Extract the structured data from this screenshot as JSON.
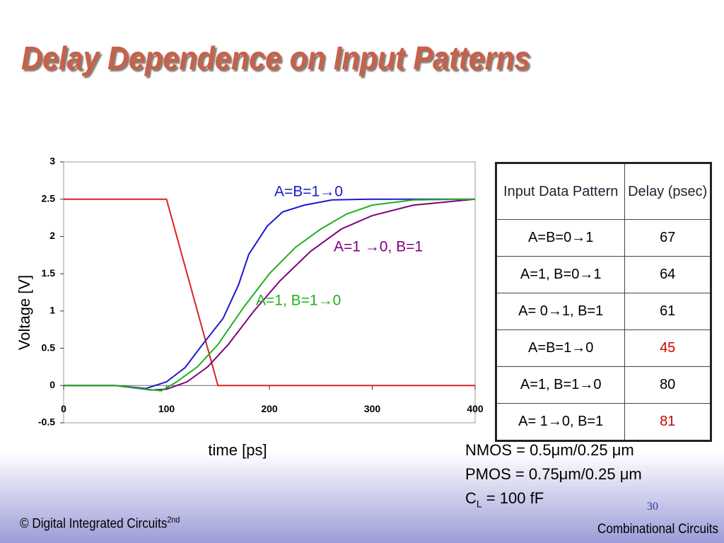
{
  "title": "Delay Dependence on Input Patterns",
  "chart_data": {
    "type": "line",
    "xlabel": "time [ps]",
    "ylabel": "Voltage [V]",
    "xlim": [
      0,
      400
    ],
    "ylim": [
      -0.5,
      3
    ],
    "xticks": [
      0,
      100,
      200,
      300,
      400
    ],
    "yticks": [
      -0.5,
      0,
      0.5,
      1,
      1.5,
      2,
      2.5,
      3
    ],
    "grid": false,
    "series": [
      {
        "color": "#e02020",
        "x": [
          0,
          100,
          150,
          400
        ],
        "values": [
          2.5,
          2.5,
          0,
          0
        ]
      },
      {
        "name": "A=B=1→0",
        "color": "#1a1acc",
        "x": [
          0,
          50,
          80,
          100,
          118,
          135,
          155,
          170,
          180,
          198,
          213,
          234,
          261,
          300,
          400
        ],
        "values": [
          0,
          0,
          -0.04,
          0.05,
          0.24,
          0.55,
          0.9,
          1.35,
          1.76,
          2.14,
          2.33,
          2.42,
          2.49,
          2.5,
          2.5
        ]
      },
      {
        "name": "A=1 →0, B=1",
        "color": "#800080",
        "x": [
          0,
          50,
          85,
          100,
          120,
          140,
          160,
          185,
          210,
          240,
          270,
          300,
          340,
          400
        ],
        "values": [
          0,
          0,
          -0.06,
          -0.05,
          0.05,
          0.25,
          0.55,
          1.0,
          1.4,
          1.8,
          2.1,
          2.28,
          2.42,
          2.5
        ]
      },
      {
        "name": "A=1, B=1→0",
        "color": "#20b020",
        "x": [
          0,
          50,
          80,
          95,
          110,
          130,
          150,
          175,
          200,
          225,
          250,
          275,
          300,
          340,
          400
        ],
        "values": [
          0,
          0,
          -0.05,
          -0.07,
          0.05,
          0.25,
          0.55,
          1.05,
          1.5,
          1.85,
          2.1,
          2.3,
          2.42,
          2.49,
          2.5
        ]
      }
    ]
  },
  "table": {
    "header": [
      "Input Data Pattern",
      "Delay (psec)"
    ],
    "rows": [
      [
        "A=B=0→1",
        67
      ],
      [
        "A=1, B=0→1",
        64
      ],
      [
        "A= 0→1, B=1",
        61
      ],
      [
        "A=B=1→0",
        45
      ],
      [
        "A=1, B=1→0",
        80
      ],
      [
        "A= 1→0, B=1",
        81
      ]
    ],
    "highlight_rows": [
      3,
      5
    ],
    "highlight_color": "#cc0000"
  },
  "notes": [
    "NMOS = 0.5μm/0.25 μm",
    "PMOS = 0.75μm/0.25 μm"
  ],
  "load": {
    "symbol": "C",
    "subscript": "L",
    "rest": " = 100 fF"
  },
  "page_number": 30,
  "footer": {
    "left": "© Digital Integrated Circuits",
    "left_sup": "2nd",
    "right": "Combinational Circuits"
  }
}
